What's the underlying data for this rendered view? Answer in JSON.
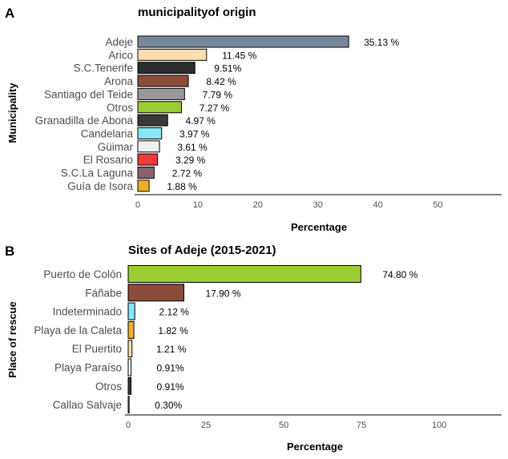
{
  "chart_data": [
    {
      "type": "bar",
      "orientation": "horizontal",
      "panel_label": "A",
      "title": "municipalityof origin",
      "xlabel": "Percentage",
      "ylabel": "Municipality",
      "xlim": [
        0,
        55
      ],
      "xticks": [
        0,
        10,
        20,
        30,
        40,
        50
      ],
      "grid": false,
      "categories": [
        "Adeje",
        "Arico",
        "S.C.Tenerife",
        "Arona",
        "Santiago del Teide",
        "Otros",
        "Granadilla de Abona",
        "Candelaria",
        "Güimar",
        "El Rosario",
        "S.C.La Laguna",
        "Guía de Isora"
      ],
      "values": [
        35.13,
        11.45,
        9.51,
        8.42,
        7.79,
        7.27,
        4.97,
        3.97,
        3.61,
        3.29,
        2.72,
        1.88
      ],
      "value_labels": [
        "35.13 %",
        "11.45 %",
        "9.51%",
        "8.42 %",
        "7.79 %",
        "7.27 %",
        "4.97 %",
        "3.97 %",
        "3.61 %",
        "3.29 %",
        "2.72 %",
        "1.88 %"
      ],
      "colors": [
        "#778899",
        "#ffdead",
        "#2e2e2e",
        "#8b4c39",
        "#999999",
        "#9acd32",
        "#3a3a3a",
        "#87e6f2",
        "#f0f0f0",
        "#ee3b3b",
        "#8b6370",
        "#efad2c"
      ]
    },
    {
      "type": "bar",
      "orientation": "horizontal",
      "panel_label": "B",
      "title": "Sites of Adeje (2015-2021)",
      "xlabel": "Percentage",
      "ylabel": "Place of rescue",
      "xlim": [
        0,
        110
      ],
      "xticks": [
        0,
        25,
        50,
        75,
        100
      ],
      "grid": false,
      "categories": [
        "Puerto de Colón",
        "Fáñabe",
        "Indeterminado",
        "Playa de la Caleta",
        "El Puertito",
        "Playa Paraíso",
        "Otros",
        "Callao Salvaje"
      ],
      "values": [
        74.8,
        17.9,
        2.12,
        1.82,
        1.21,
        0.91,
        0.91,
        0.3
      ],
      "value_labels": [
        "74.80 %",
        "17.90 %",
        "2.12 %",
        "1.82 %",
        "1.21 %",
        "0.91%",
        "0.91%",
        "0.30%"
      ],
      "colors": [
        "#9acd32",
        "#8b4c39",
        "#87e6f2",
        "#efad2c",
        "#ffdead",
        "#ffffff",
        "#3a3a3a",
        "#ffffff"
      ]
    }
  ]
}
